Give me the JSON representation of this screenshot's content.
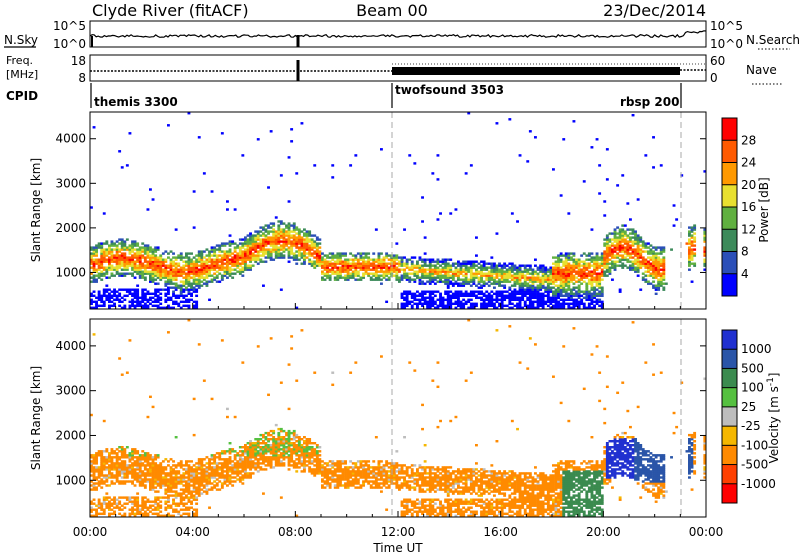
{
  "header": {
    "title": "Clyde River (fitACF)",
    "beam": "Beam 00",
    "date": "23/Dec/2014"
  },
  "noise_panel": {
    "left_label": "N.Sky",
    "left_ticks": [
      "10^5",
      "10^0"
    ],
    "right_label": "N.Search",
    "right_ticks": [
      "10^5",
      "10^0"
    ]
  },
  "freq_panel": {
    "left_label_top": "Freq.",
    "left_label_bottom": "[MHz]",
    "left_ticks": [
      "18",
      "8"
    ],
    "right_label": "Nave",
    "right_ticks": [
      "60",
      "0"
    ]
  },
  "cpid": {
    "label": "CPID",
    "segments": [
      {
        "name": "themis 3300",
        "start_hr": 0
      },
      {
        "name": "twofsound 3503",
        "start_hr": 12
      },
      {
        "name": "rbsp 200",
        "start_hr": 23.5
      }
    ]
  },
  "colors": {
    "power_scale": [
      "#0000ff",
      "#2b4fb8",
      "#3c8a5a",
      "#60b040",
      "#e8e030",
      "#ff9900",
      "#ff5a00",
      "#ff0000"
    ],
    "velocity_scale": [
      "#2030d0",
      "#2a55a8",
      "#3b8b4f",
      "#55c040",
      "#bdbdbd",
      "#f5b700",
      "#ff8a00",
      "#ff4000",
      "#ff0000"
    ]
  },
  "chart_data": [
    {
      "type": "heatmap",
      "name": "power",
      "ylabel": "Slant Range [km]",
      "xlim_hr": [
        0,
        24
      ],
      "ylim": [
        180,
        4600
      ],
      "yticks": [
        "1000",
        "2000",
        "3000",
        "4000"
      ],
      "colorbar": {
        "label": "Power [dB]",
        "ticks": [
          "4",
          "8",
          "12",
          "16",
          "20",
          "24",
          "28"
        ],
        "range": [
          0,
          32
        ]
      }
    },
    {
      "type": "heatmap",
      "name": "velocity",
      "ylabel": "Slant Range [km]",
      "xlabel": "Time UT",
      "xlim_hr": [
        0,
        24
      ],
      "ylim": [
        180,
        4600
      ],
      "yticks": [
        "1000",
        "2000",
        "3000",
        "4000"
      ],
      "xticks": [
        "00:00",
        "04:00",
        "08:00",
        "12:00",
        "16:00",
        "20:00",
        "00:00"
      ],
      "colorbar": {
        "label_main": "Velocity [m s",
        "label_sup": "-1",
        "label_end": "]",
        "ticks": [
          "1000",
          "500",
          "100",
          "25",
          "-25",
          "-100",
          "-500",
          "-1000"
        ]
      }
    }
  ]
}
